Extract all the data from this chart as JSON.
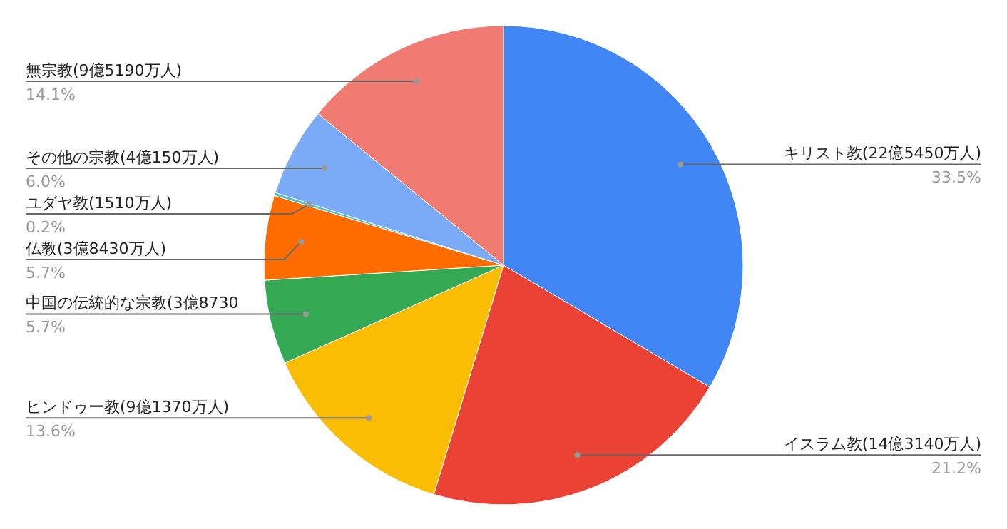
{
  "chart_data": {
    "type": "pie",
    "categories": [
      "キリスト教(22億5450万人)",
      "イスラム教(14億3140万人)",
      "ヒンドゥー教(9億1370万人)",
      "中国の伝統的な宗教(3億8730",
      "仏教(3億8430万人)",
      "ユダヤ教(1510万人)",
      "その他の宗教(4億150万人)",
      "無宗教(9億5190万人)"
    ],
    "values": [
      33.5,
      21.2,
      13.6,
      5.7,
      5.7,
      0.2,
      6.0,
      14.1
    ],
    "colors": [
      "#4285f4",
      "#ea4335",
      "#fbbc04",
      "#34a853",
      "#ff6d01",
      "#46bdc6",
      "#7baaf7",
      "#f07b72"
    ],
    "value_labels": [
      "33.5%",
      "21.2%",
      "13.6%",
      "5.7%",
      "5.7%",
      "0.2%",
      "6.0%",
      "14.1%"
    ]
  }
}
